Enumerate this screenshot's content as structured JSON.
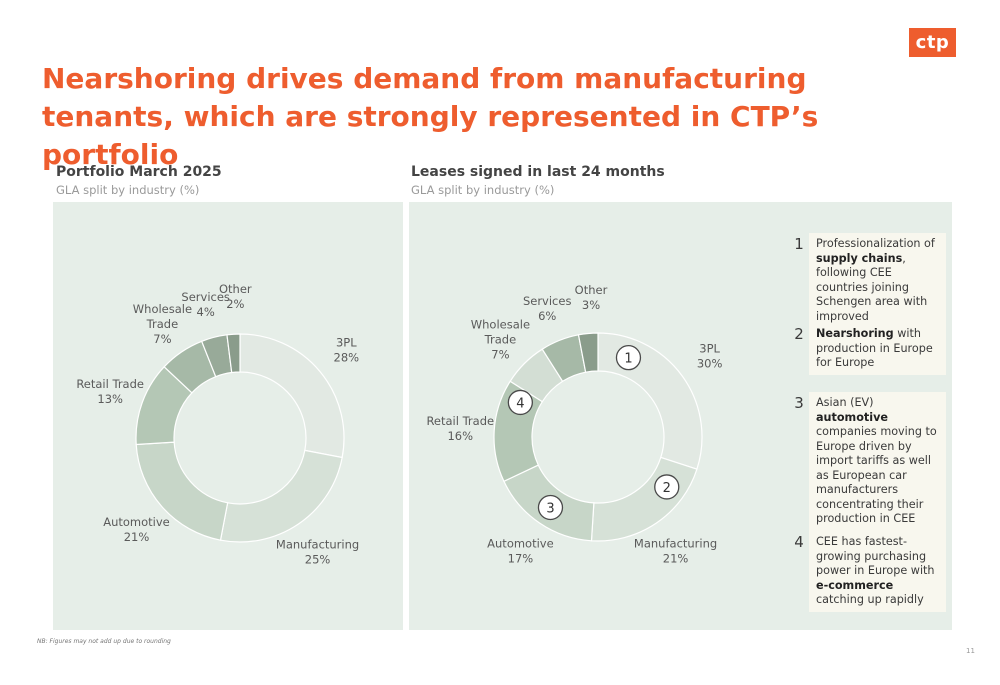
{
  "logo": "ctp",
  "title": "Nearshoring drives demand from manufacturing tenants, which are strongly represented in CTP’s portfolio",
  "chart_data": [
    {
      "type": "pie",
      "donut": true,
      "title": "Portfolio March 2025",
      "subtitle": "GLA split by industry (%)",
      "categories": [
        "3PL",
        "Manufacturing",
        "Automotive",
        "Retail Trade",
        "Wholesale Trade",
        "Services",
        "Other"
      ],
      "values": [
        28,
        25,
        21,
        13,
        7,
        4,
        2
      ],
      "labels": [
        "28%",
        "25%",
        "21%",
        "13%",
        "7%",
        "4%",
        "2%"
      ],
      "colors": [
        "#e2e9e3",
        "#d6e1d7",
        "#c7d6c8",
        "#b4c7b5",
        "#a6b9a7",
        "#98aa99",
        "#8a9c8b"
      ]
    },
    {
      "type": "pie",
      "donut": true,
      "title": "Leases signed in last 24 months",
      "subtitle": "GLA split by industry (%)",
      "categories": [
        "3PL",
        "Manufacturing",
        "Automotive",
        "Retail Trade",
        "Wholesale Trade",
        "Services",
        "Other"
      ],
      "values": [
        30,
        21,
        17,
        16,
        7,
        6,
        3
      ],
      "labels": [
        "30%",
        "21%",
        "17%",
        "16%",
        "7%",
        "6%",
        "3%"
      ],
      "colors": [
        "#e2e9e3",
        "#d6e1d7",
        "#c7d6c8",
        "#b4c7b5",
        "#d3ded4",
        "#a6b9a7",
        "#8a9c8b"
      ],
      "markers": [
        "1",
        "2",
        "3",
        "4"
      ]
    }
  ],
  "points": [
    {
      "num": "1",
      "parts": [
        {
          "t": "Professionalization of ",
          "b": false
        },
        {
          "t": "supply chains",
          "b": true
        },
        {
          "t": ", following CEE countries joining Schengen area with improved infrastructure",
          "b": false
        }
      ]
    },
    {
      "num": "2",
      "parts": [
        {
          "t": "Nearshoring",
          "b": true
        },
        {
          "t": " with production in Europe for Europe",
          "b": false
        }
      ]
    },
    {
      "num": "3",
      "parts": [
        {
          "t": "Asian (EV) ",
          "b": false
        },
        {
          "t": "automotive",
          "b": true
        },
        {
          "t": " companies moving to Europe driven by import tariffs as well as European car manufacturers concentrating their production in CEE",
          "b": false
        }
      ]
    },
    {
      "num": "4",
      "parts": [
        {
          "t": "CEE has fastest-growing purchasing power in Europe with ",
          "b": false
        },
        {
          "t": "e-commerce",
          "b": true
        },
        {
          "t": " catching up rapidly",
          "b": false
        }
      ]
    }
  ],
  "footnote": "NB: Figures may not add up due to rounding",
  "page_number": "11"
}
